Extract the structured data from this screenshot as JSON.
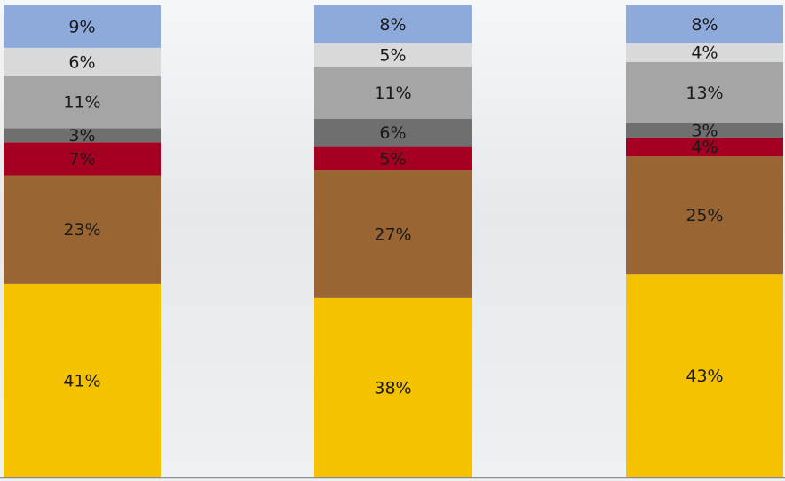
{
  "chart_data": {
    "type": "stacked_bar",
    "categories": [
      null,
      null,
      null
    ],
    "ylim": [
      0,
      100
    ],
    "series": [
      {
        "color": "#f5c200",
        "values": [
          41,
          38,
          43
        ],
        "value_labels": [
          "41%",
          "38%",
          "43%"
        ]
      },
      {
        "color": "#996633",
        "values": [
          23,
          27,
          25
        ],
        "value_labels": [
          "23%",
          "27%",
          "25%"
        ]
      },
      {
        "color": "#a50021",
        "values": [
          7,
          5,
          4
        ],
        "value_labels": [
          "7%",
          "5%",
          "4%"
        ]
      },
      {
        "color": "#6f6f6f",
        "values": [
          3,
          6,
          3
        ],
        "value_labels": [
          "3%",
          "6%",
          "3%"
        ]
      },
      {
        "color": "#a5a5a5",
        "values": [
          11,
          11,
          13
        ],
        "value_labels": [
          "11%",
          "11%",
          "13%"
        ]
      },
      {
        "color": "#d9d9d9",
        "values": [
          6,
          5,
          4
        ],
        "value_labels": [
          "6%",
          "5%",
          "4%"
        ]
      },
      {
        "color": "#8eaadb",
        "values": [
          9,
          8,
          8
        ],
        "value_labels": [
          "9%",
          "8%",
          "8%"
        ]
      }
    ]
  }
}
